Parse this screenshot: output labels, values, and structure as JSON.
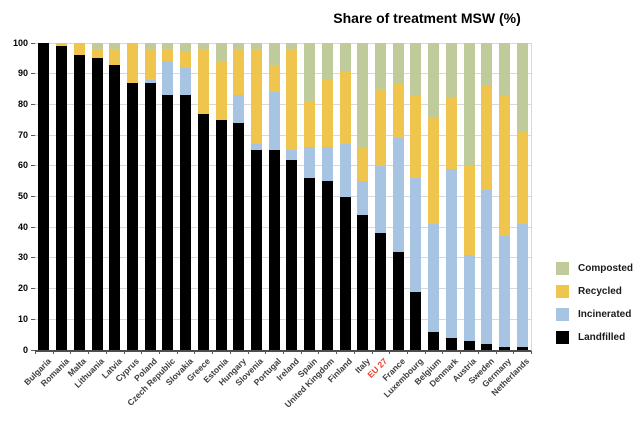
{
  "title": "Share of treatment MSW (%)",
  "colors": {
    "landfilled": "#000000",
    "incinerated": "#A8C4E3",
    "recycled": "#F0C54E",
    "composted": "#BFCB9B",
    "highlight_label": "#E8432C",
    "axis_text": "#3f3f3f"
  },
  "chart_data": {
    "type": "bar",
    "stacked": true,
    "title": "Share of treatment MSW (%)",
    "xlabel": "",
    "ylabel": "",
    "ylim": [
      0,
      100
    ],
    "yticks": [
      0,
      10,
      20,
      30,
      40,
      50,
      60,
      70,
      80,
      90,
      100
    ],
    "grid": true,
    "legend_position": "right-bottom",
    "highlight_category": "EU 27",
    "categories": [
      "Bulgaria",
      "Romania",
      "Malta",
      "Lithuania",
      "Latvia",
      "Cyprus",
      "Poland",
      "Czech Republic",
      "Slovakia",
      "Greece",
      "Estonia",
      "Hungary",
      "Slovenia",
      "Portugal",
      "Ireland",
      "Spain",
      "United Kingdom",
      "Finland",
      "Italy",
      "EU 27",
      "France",
      "Luxembourg",
      "Belgium",
      "Denmark",
      "Austria",
      "Sweden",
      "Germany",
      "Netherlands"
    ],
    "series": [
      {
        "name": "Landfilled",
        "color": "#000000",
        "values": [
          100,
          99,
          96,
          95,
          93,
          87,
          87,
          83,
          83,
          77,
          75,
          74,
          65,
          65,
          62,
          56,
          55,
          50,
          44,
          38,
          32,
          19,
          6,
          4,
          3,
          2,
          1,
          1
        ]
      },
      {
        "name": "Incinerated",
        "color": "#A8C4E3",
        "values": [
          0,
          0,
          0,
          0,
          0,
          0,
          1,
          11,
          9,
          0,
          0,
          9,
          2,
          19,
          3,
          10,
          11,
          17,
          11,
          22,
          37,
          37,
          35,
          55,
          28,
          50,
          36,
          40
        ]
      },
      {
        "name": "Recycled",
        "color": "#F0C54E",
        "values": [
          0,
          1,
          4,
          3,
          5,
          13,
          10,
          4,
          5,
          21,
          19,
          15,
          31,
          9,
          33,
          15,
          22,
          24,
          11,
          25,
          18,
          27,
          35,
          23,
          29,
          34,
          46,
          30
        ]
      },
      {
        "name": "Composted",
        "color": "#BFCB9B",
        "values": [
          0,
          0,
          0,
          2,
          2,
          0,
          2,
          2,
          3,
          2,
          6,
          2,
          2,
          7,
          2,
          19,
          12,
          9,
          34,
          15,
          13,
          17,
          24,
          18,
          40,
          14,
          17,
          29
        ]
      }
    ],
    "legend": [
      {
        "label": "Composted",
        "color": "#BFCB9B"
      },
      {
        "label": "Recycled",
        "color": "#F0C54E"
      },
      {
        "label": "Incinerated",
        "color": "#A8C4E3"
      },
      {
        "label": "Landfilled",
        "color": "#000000"
      }
    ]
  }
}
